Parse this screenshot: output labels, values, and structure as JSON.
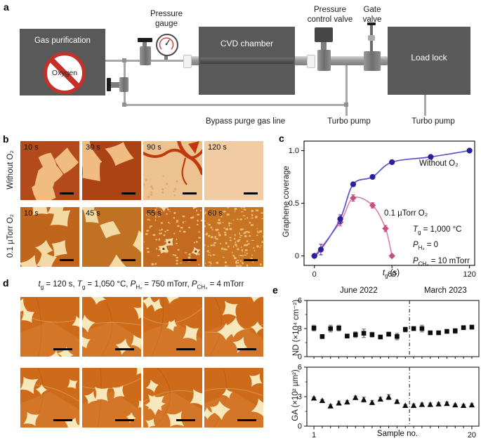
{
  "colors": {
    "panel_box_gray": "#595959",
    "pipe_gray": "#a8a8a8",
    "no_symbol_red": "#c53029",
    "series_without_o2_marker": "#29219b",
    "series_without_o2_line": "#5b50cd",
    "series_o2_marker": "#c4507f",
    "series_o2_line": "#d9709f",
    "micrograph": {
      "substrate_dark": "#b34a1c",
      "substrate_dark2": "#ac4315",
      "substrate_mid": "#bf661c",
      "substrate_gold": "#c17122",
      "substrate_mid2": "#c26a1f",
      "substrate_gold2": "#c77423",
      "substrate_d": "#cd6b1b",
      "bare_cream": "#ecc291",
      "bare_cream2": "#f0cba3",
      "flake_light": "#f0bc81",
      "flake_cream": "#f3d9a4",
      "flake_d": "#f6e8ba",
      "crack_red": "#c23a0c",
      "nucleus_dark": "#7c3710",
      "dot_light": "#efbd7a"
    }
  },
  "panel_a": {
    "label": "a",
    "gas_purification": "Gas purification",
    "oxygen": "Oxygen",
    "cvd_chamber": "CVD chamber",
    "load_lock": "Load lock",
    "pressure_gauge_l1": "Pressure",
    "pressure_gauge_l2": "gauge",
    "pcv_l1": "Pressure",
    "pcv_l2": "control valve",
    "gate_l1": "Gate",
    "gate_l2": "valve",
    "bypass": "Bypass purge gas line",
    "turbo_pump_left": "Turbo pump",
    "turbo_pump_right": "Turbo pump"
  },
  "panel_b": {
    "label": "b",
    "row1_label": "Without O₂",
    "row2_label": "0.1 µTorr O₂",
    "row1_times": [
      "10 s",
      "30 s",
      "90 s",
      "120 s"
    ],
    "row2_times": [
      "10 s",
      "45 s",
      "55 s",
      "60 s"
    ]
  },
  "panel_c": {
    "label": "c",
    "legend_without": "Without O₂",
    "legend_o2": "0.1 µTorr O₂",
    "ylabel": "Graphene coverage",
    "xlabel_html": "<i>t</i><sub>g</sub> (s)",
    "annotations_html": [
      "<i>T</i><sub>g</sub> = 1,000 °C",
      "<i>P</i><sub>H₂</sub> = 0",
      "<i>P</i><sub>CH₄</sub> = 10 mTorr"
    ]
  },
  "panel_d": {
    "label": "d",
    "title_html": "<i>t</i><sub>g</sub> = 120 s, <i>T</i><sub>g</sub> = 1,050 °C, <i>P</i><sub>H₂</sub> = 750 mTorr, <i>P</i><sub>CH₄</sub> = 4 mTorr"
  },
  "panel_e": {
    "label": "e",
    "period_left": "June 2022",
    "period_right": "March 2023",
    "xlabel": "Sample no.",
    "ylabel_top": "ND (×10⁴ cm⁻²)",
    "ylabel_bottom": "GA (×10² µm²)"
  },
  "chart_data": [
    {
      "id": "graphene-coverage",
      "type": "scatter",
      "title": "",
      "xlabel": "t_g (s)",
      "ylabel": "Graphene coverage",
      "xlim": [
        -8,
        124
      ],
      "ylim": [
        -0.09,
        1.09
      ],
      "xticks": [
        0,
        60,
        120
      ],
      "xtick_labels": [
        "0",
        "60",
        "120"
      ],
      "yticks": [
        0,
        0.5,
        1.0
      ],
      "ytick_labels": [
        "0",
        "0.5",
        "1.0"
      ],
      "grid": false,
      "legend_position": "inline-labels",
      "series": [
        {
          "name": "Without O₂",
          "marker": "circle",
          "x": [
            0,
            5,
            20,
            30,
            45,
            60,
            90,
            120
          ],
          "y": [
            0,
            0.06,
            0.35,
            0.68,
            0.75,
            0.89,
            0.94,
            1.0
          ],
          "yerr": [
            0.02,
            0.05,
            0.04,
            0.02,
            0.02,
            0.015,
            0.01,
            0.01
          ]
        },
        {
          "name": "0.1 µTorr O₂",
          "marker": "diamond",
          "x": [
            0,
            20,
            30,
            45,
            55,
            60
          ],
          "y": [
            0,
            0.32,
            0.55,
            0.48,
            0.26,
            0
          ],
          "yerr": [
            0.02,
            0.035,
            0.03,
            0.025,
            0.03,
            0.015
          ]
        }
      ],
      "annotations": [
        "T_g = 1,000 °C",
        "P_H₂ = 0",
        "P_CH₄ = 10 mTorr"
      ]
    },
    {
      "id": "nucleation-density",
      "type": "scatter",
      "ylabel": "ND (×10⁴ cm⁻²)",
      "xlim": [
        0.15,
        20.85
      ],
      "ylim": [
        0,
        6
      ],
      "yticks": [
        0,
        3,
        6
      ],
      "yticks_minor": [
        1.5,
        4.5
      ],
      "marker": "square",
      "x": [
        1,
        2,
        3,
        4,
        5,
        6,
        7,
        8,
        9,
        10,
        11,
        12,
        13,
        14,
        15,
        16,
        17,
        18,
        19,
        20
      ],
      "values": [
        3.05,
        2.15,
        3.0,
        3.05,
        2.2,
        2.35,
        2.5,
        2.35,
        2.1,
        2.4,
        2.15,
        2.9,
        3.0,
        3.0,
        2.55,
        2.55,
        2.7,
        2.75,
        3.1,
        3.15
      ],
      "errors": [
        0.3,
        0.2,
        0.35,
        0.3,
        0.15,
        0.3,
        0.45,
        0.25,
        0.15,
        0.2,
        0.35,
        0.25,
        0.2,
        0.35,
        0.15,
        0.15,
        0.15,
        0.25,
        0.15,
        0.2
      ],
      "divider_x": 12.5,
      "period_labels": [
        "June 2022",
        "March 2023"
      ]
    },
    {
      "id": "grain-area",
      "type": "scatter",
      "ylabel": "GA (×10² µm²)",
      "xlabel": "Sample no.",
      "xlim": [
        0.15,
        20.85
      ],
      "ylim": [
        0,
        6
      ],
      "yticks": [
        0,
        3,
        6
      ],
      "yticks_minor": [
        1.5,
        4.5
      ],
      "xticks_labeled": [
        1,
        20
      ],
      "marker": "triangle",
      "x": [
        1,
        2,
        3,
        4,
        5,
        6,
        7,
        8,
        9,
        10,
        11,
        12,
        13,
        14,
        15,
        16,
        17,
        18,
        19,
        20
      ],
      "values": [
        2.85,
        2.6,
        2.05,
        2.35,
        2.45,
        2.9,
        2.7,
        2.4,
        2.75,
        2.95,
        2.5,
        2.1,
        2.1,
        2.2,
        2.2,
        2.25,
        2.3,
        2.15,
        2.1,
        2.15
      ],
      "errors": [
        0.1,
        0.1,
        0.15,
        0.2,
        0.15,
        0.15,
        0.25,
        0.2,
        0.2,
        0.25,
        0.15,
        0.1,
        0.15,
        0.15,
        0.15,
        0.15,
        0.15,
        0.1,
        0.1,
        0.15
      ],
      "divider_x": 12.5
    }
  ]
}
